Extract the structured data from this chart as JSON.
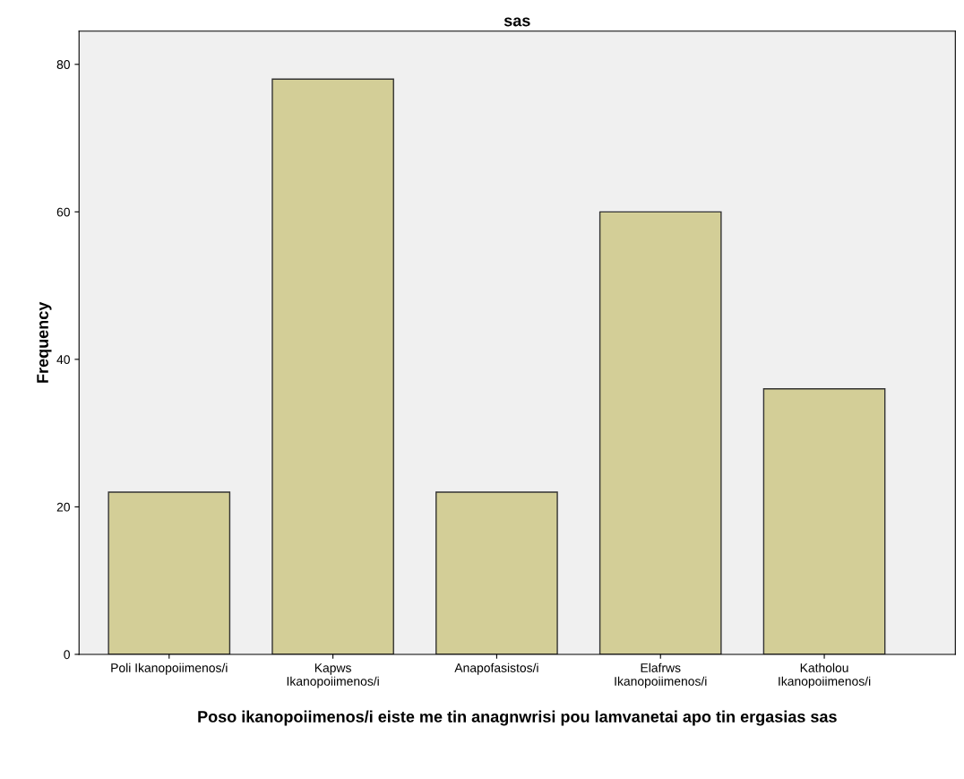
{
  "chart_data": {
    "type": "bar",
    "title": "sas",
    "xlabel": "Poso ikanopoiimenos/i eiste me tin anagnwrisi pou lamvanetai apo tin ergasias sas",
    "ylabel": "Frequency",
    "categories": [
      "Poli Ikanopoiimenos/i",
      "Kapws\nIkanopoiimenos/i",
      "Anapofasistos/i",
      "Elafrws\nIkanopoiimenos/i",
      "Katholou\nIkanopoiimenos/i"
    ],
    "values": [
      22,
      78,
      22,
      60,
      36
    ],
    "color": "#d3ce97",
    "ylim": [
      0,
      84.5
    ],
    "yticks": [
      0,
      20,
      40,
      60,
      80
    ],
    "grid": false,
    "legend": false
  }
}
